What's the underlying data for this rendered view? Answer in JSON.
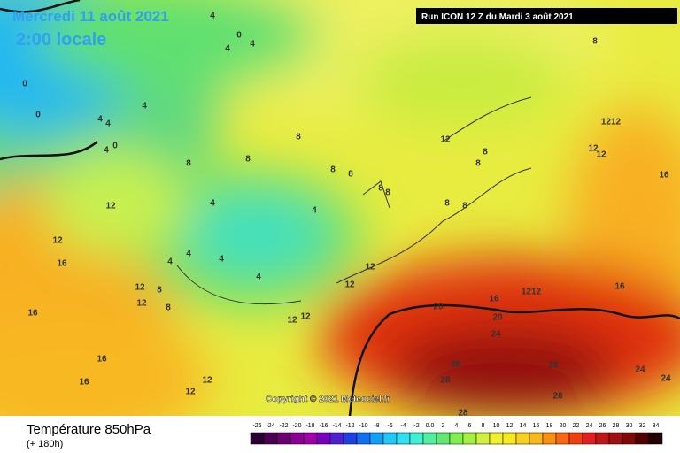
{
  "header": {
    "date": "Mercredi 11 août 2021",
    "time": "2:00 locale",
    "run": "Run ICON 12 Z du Mardi 3 août 2021"
  },
  "copyright": "Copyright © 2021 Meteociel.fr",
  "footer": {
    "title": "Température 850hPa",
    "lead": "(+ 180h)"
  },
  "scale": {
    "labels": [
      "-26",
      "-24",
      "-22",
      "-20",
      "-18",
      "-16",
      "-14",
      "-12",
      "-10",
      "-8",
      "-6",
      "-4",
      "-2",
      "0.0",
      "2",
      "4",
      "6",
      "8",
      "10",
      "12",
      "14",
      "16",
      "18",
      "20",
      "22",
      "24",
      "26",
      "28",
      "30",
      "32",
      "34"
    ],
    "colors": [
      "#2b0030",
      "#4a0050",
      "#6a0070",
      "#8a0090",
      "#a000a8",
      "#7a00c0",
      "#5020d0",
      "#2040e0",
      "#1070f0",
      "#10a0f8",
      "#20c8f8",
      "#30e0f0",
      "#40f0d0",
      "#50f0a0",
      "#60e870",
      "#80f050",
      "#a8f040",
      "#d0f040",
      "#f0f030",
      "#f8e820",
      "#f8d020",
      "#f8b818",
      "#f89010",
      "#f86810",
      "#f04010",
      "#e02020",
      "#c01818",
      "#a01010",
      "#800808",
      "#500000",
      "#200000"
    ]
  },
  "map": {
    "labels": [
      "4",
      "0",
      "4",
      "4",
      "0",
      "0",
      "4",
      "4",
      "4",
      "0",
      "4",
      "8",
      "8",
      "8",
      "8",
      "8",
      "8",
      "12",
      "8",
      "8",
      "1212",
      "12",
      "12",
      "16",
      "12",
      "4",
      "4",
      "8",
      "8",
      "8",
      "8",
      "12",
      "16",
      "4",
      "4",
      "4",
      "4",
      "12",
      "12",
      "12",
      "12",
      "8",
      "8",
      "12",
      "12",
      "20",
      "16",
      "1212",
      "16",
      "20",
      "24",
      "16",
      "16",
      "16",
      "12",
      "12",
      "28",
      "28",
      "28",
      "24",
      "24",
      "28",
      "28"
    ]
  }
}
